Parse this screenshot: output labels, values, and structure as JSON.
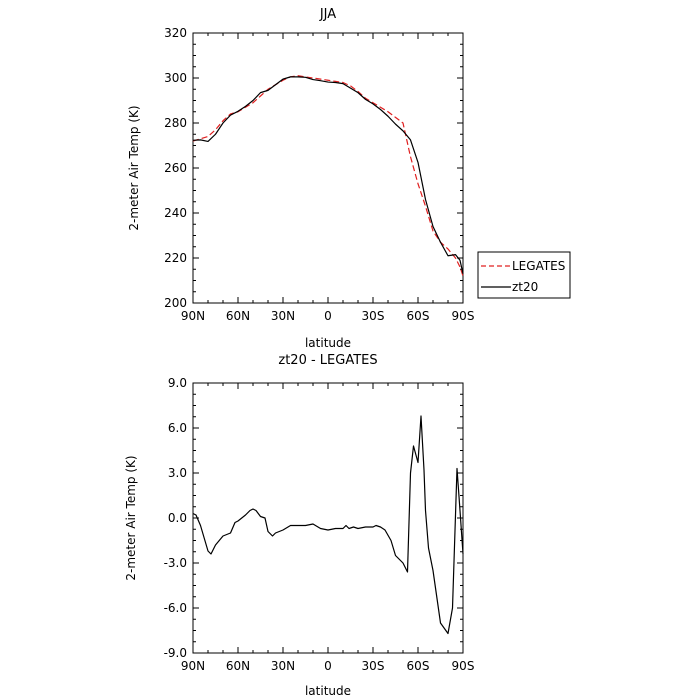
{
  "chart_data": [
    {
      "type": "line",
      "title": "JJA",
      "xlabel": "latitude",
      "ylabel": "2-meter Air Temp (K)",
      "xlim": [
        90,
        -90
      ],
      "ylim": [
        200,
        320
      ],
      "x_tick_values": [
        90,
        60,
        30,
        0,
        -30,
        -60,
        -90
      ],
      "x_tick_labels": [
        "90N",
        "60N",
        "30N",
        "0",
        "30S",
        "60S",
        "90S"
      ],
      "y_tick_values": [
        200,
        220,
        240,
        260,
        280,
        300,
        320
      ],
      "y_tick_labels": [
        "200",
        "220",
        "240",
        "260",
        "280",
        "300",
        "320"
      ],
      "grid": false,
      "legend": "right",
      "series": [
        {
          "name": "LEGATES",
          "color": "#e02020",
          "dash": "dashed",
          "x": [
            90,
            85,
            80,
            75,
            70,
            65,
            60,
            55,
            50,
            45,
            40,
            35,
            30,
            25,
            20,
            15,
            10,
            5,
            0,
            -5,
            -10,
            -15,
            -20,
            -25,
            -30,
            -35,
            -40,
            -45,
            -50,
            -55,
            -60,
            -65,
            -70,
            -75,
            -80,
            -85,
            -88,
            -90
          ],
          "y": [
            272,
            273,
            274,
            277,
            281,
            284,
            285,
            287,
            289,
            292,
            295,
            297,
            299,
            300.5,
            301,
            300.5,
            300,
            299.5,
            299,
            298.5,
            298,
            296.5,
            294,
            291,
            289,
            287,
            285,
            282.5,
            280,
            265,
            253,
            243,
            232,
            227,
            224,
            220,
            216,
            212
          ]
        },
        {
          "name": "zt20",
          "color": "#000000",
          "dash": "solid",
          "x": [
            90,
            85,
            80,
            75,
            70,
            65,
            60,
            55,
            50,
            45,
            40,
            35,
            30,
            25,
            20,
            15,
            10,
            5,
            0,
            -5,
            -10,
            -15,
            -20,
            -25,
            -30,
            -35,
            -40,
            -45,
            -50,
            -55,
            -60,
            -65,
            -70,
            -75,
            -80,
            -85,
            -88,
            -90
          ],
          "y": [
            272.3,
            272.5,
            271.8,
            275,
            280,
            283.5,
            285.2,
            287.4,
            290,
            293.5,
            294.5,
            297,
            299.5,
            300.5,
            300.5,
            300.3,
            299.3,
            298.8,
            298.2,
            298,
            297.5,
            295.5,
            293.5,
            290.5,
            288.5,
            286,
            283,
            279.5,
            276.5,
            272.5,
            262.5,
            246,
            234,
            227,
            221,
            221.5,
            219,
            213
          ]
        }
      ]
    },
    {
      "type": "line",
      "title": "zt20 - LEGATES",
      "xlabel": "latitude",
      "ylabel": "2-meter Air Temp (K)",
      "xlim": [
        90,
        -90
      ],
      "ylim": [
        -9,
        9
      ],
      "x_tick_values": [
        90,
        60,
        30,
        0,
        -30,
        -60,
        -90
      ],
      "x_tick_labels": [
        "90N",
        "60N",
        "30N",
        "0",
        "30S",
        "60S",
        "90S"
      ],
      "y_tick_values": [
        -9,
        -6,
        -3,
        0,
        3,
        6,
        9
      ],
      "y_tick_labels": [
        "-9.0",
        "-6.0",
        "-3.0",
        "0.0",
        "3.0",
        "6.0",
        "9.0"
      ],
      "grid": false,
      "series": [
        {
          "color": "#000000",
          "dash": "solid",
          "x": [
            90,
            88,
            85,
            80,
            78,
            75,
            70,
            65,
            62,
            60,
            55,
            52,
            50,
            48,
            45,
            42,
            40,
            37,
            35,
            30,
            25,
            20,
            15,
            10,
            5,
            0,
            -5,
            -10,
            -12,
            -14,
            -17,
            -20,
            -25,
            -30,
            -32,
            -35,
            -38,
            -42,
            -45,
            -50,
            -53,
            -55,
            -57,
            -60,
            -62,
            -64,
            -65,
            -67,
            -70,
            -75,
            -80,
            -83,
            -86,
            -88,
            -90
          ],
          "y": [
            0.3,
            0.2,
            -0.5,
            -2.2,
            -2.4,
            -1.8,
            -1.2,
            -1.0,
            -0.3,
            -0.2,
            0.2,
            0.5,
            0.6,
            0.5,
            0.1,
            0.0,
            -0.9,
            -1.2,
            -1.0,
            -0.8,
            -0.5,
            -0.5,
            -0.5,
            -0.4,
            -0.7,
            -0.8,
            -0.7,
            -0.7,
            -0.5,
            -0.7,
            -0.6,
            -0.7,
            -0.6,
            -0.6,
            -0.5,
            -0.6,
            -0.8,
            -1.5,
            -2.5,
            -3.0,
            -3.6,
            3.0,
            4.8,
            3.7,
            6.8,
            3.2,
            0.5,
            -2.0,
            -3.5,
            -7.0,
            -7.7,
            -6.0,
            3.3,
            0.5,
            -2.4
          ]
        }
      ]
    }
  ]
}
